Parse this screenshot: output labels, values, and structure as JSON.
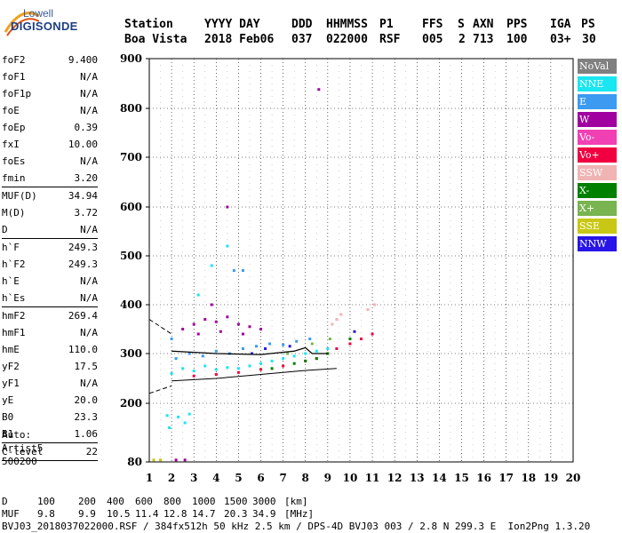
{
  "logo": {
    "line1": "Lowell",
    "line2": "DIGISONDE"
  },
  "header": {
    "labels": [
      "Station",
      "YYYY DAY",
      "DDD",
      "HHMMSS",
      "P1",
      "FFS",
      "S",
      "AXN",
      "PPS",
      "IGA",
      "PS"
    ],
    "values": [
      "Boa Vista",
      "2018 Feb06",
      "037",
      "022000",
      "RSF",
      "005",
      "2",
      "713",
      "100",
      "03+",
      "30"
    ]
  },
  "params": [
    {
      "group": [
        {
          "k": "foF2",
          "v": "9.400"
        },
        {
          "k": "foF1",
          "v": "N/A"
        },
        {
          "k": "foF1p",
          "v": "N/A"
        },
        {
          "k": "foE",
          "v": "N/A"
        },
        {
          "k": "foEp",
          "v": "0.39"
        },
        {
          "k": "fxI",
          "v": "10.00"
        },
        {
          "k": "foEs",
          "v": "N/A"
        },
        {
          "k": "fmin",
          "v": "3.20"
        }
      ]
    },
    {
      "group": [
        {
          "k": "MUF(D)",
          "v": "34.94"
        },
        {
          "k": "M(D)",
          "v": "3.72"
        },
        {
          "k": "D",
          "v": "N/A"
        }
      ]
    },
    {
      "group": [
        {
          "k": "h`F",
          "v": "249.3"
        },
        {
          "k": "h`F2",
          "v": "249.3"
        },
        {
          "k": "h`E",
          "v": "N/A"
        },
        {
          "k": "h`Es",
          "v": "N/A"
        }
      ]
    },
    {
      "group": [
        {
          "k": "hmF2",
          "v": "269.4"
        },
        {
          "k": "hmF1",
          "v": "N/A"
        },
        {
          "k": "hmE",
          "v": "110.0"
        },
        {
          "k": "yF2",
          "v": "17.5"
        },
        {
          "k": "yF1",
          "v": "N/A"
        },
        {
          "k": "yE",
          "v": "20.0"
        },
        {
          "k": "B0",
          "v": "23.3"
        },
        {
          "k": "B1",
          "v": "1.06"
        }
      ]
    },
    {
      "group": [
        {
          "k": "C-level",
          "v": "22"
        }
      ]
    }
  ],
  "autoscale": [
    "Auto:",
    "Artist5",
    "500200"
  ],
  "legend": [
    {
      "label": "NoVal",
      "color": "#808080"
    },
    {
      "label": "NNE",
      "color": "#19e6f0"
    },
    {
      "label": "E",
      "color": "#3c9bf0"
    },
    {
      "label": "W",
      "color": "#a000a0"
    },
    {
      "label": "Vo-",
      "color": "#f040b4"
    },
    {
      "label": "Vo+",
      "color": "#f00040"
    },
    {
      "label": "SSW",
      "color": "#f0b4b4"
    },
    {
      "label": "X-",
      "color": "#008000"
    },
    {
      "label": "X+",
      "color": "#78b450"
    },
    {
      "label": "SSE",
      "color": "#c8c814"
    },
    {
      "label": "NNW",
      "color": "#2814e6"
    }
  ],
  "footer": {
    "d_label": "D",
    "d_values": [
      "100",
      "200",
      "400",
      "600",
      "800",
      "1000",
      "1500",
      "3000",
      "[km]"
    ],
    "muf_label": "MUF",
    "muf_values": [
      "9.8",
      "9.9",
      "10.5",
      "11.4",
      "12.8",
      "14.7",
      "20.3",
      "34.9",
      "[MHz]"
    ],
    "info": "BVJ03_2018037022000.RSF / 384fx512h 50 kHz 2.5 km / DPS-4D BVJ03 003 / 2.8 N 299.3 E  Ion2Png 1.3.20"
  },
  "chart_data": {
    "type": "scatter",
    "title": "",
    "xlabel": "",
    "ylabel": "",
    "xlim": [
      1,
      20
    ],
    "ylim": [
      80,
      900
    ],
    "x_ticks": [
      1,
      2,
      3,
      4,
      5,
      6,
      7,
      8,
      9,
      10,
      11,
      12,
      13,
      14,
      15,
      16,
      17,
      18,
      19,
      20
    ],
    "y_ticks": [
      80,
      200,
      300,
      400,
      500,
      600,
      700,
      800,
      900
    ],
    "grid": true,
    "legend_position": "right",
    "series": [
      {
        "name": "NNE",
        "color": "#19e6f0",
        "points": [
          [
            2.0,
            260
          ],
          [
            2.5,
            270
          ],
          [
            3.0,
            265
          ],
          [
            3.5,
            275
          ],
          [
            4.0,
            268
          ],
          [
            4.5,
            272
          ],
          [
            5.0,
            270
          ],
          [
            5.5,
            275
          ],
          [
            6.0,
            280
          ],
          [
            6.5,
            285
          ],
          [
            7.0,
            290
          ],
          [
            7.5,
            295
          ],
          [
            8.0,
            300
          ],
          [
            8.5,
            305
          ],
          [
            9.0,
            310
          ],
          [
            1.8,
            175
          ],
          [
            2.3,
            172
          ],
          [
            2.8,
            178
          ],
          [
            1.9,
            150
          ],
          [
            2.6,
            160
          ],
          [
            3.2,
            420
          ],
          [
            3.8,
            480
          ],
          [
            4.5,
            520
          ]
        ]
      },
      {
        "name": "E",
        "color": "#3c9bf0",
        "points": [
          [
            2.2,
            290
          ],
          [
            2.8,
            300
          ],
          [
            3.4,
            295
          ],
          [
            4.0,
            305
          ],
          [
            4.6,
            300
          ],
          [
            5.2,
            310
          ],
          [
            5.8,
            315
          ],
          [
            6.4,
            320
          ],
          [
            7.0,
            318
          ],
          [
            7.6,
            325
          ],
          [
            8.2,
            330
          ],
          [
            4.8,
            470
          ],
          [
            5.2,
            470
          ],
          [
            2.0,
            330
          ]
        ]
      },
      {
        "name": "W",
        "color": "#a000a0",
        "points": [
          [
            2.5,
            350
          ],
          [
            3.0,
            360
          ],
          [
            3.5,
            370
          ],
          [
            4.0,
            365
          ],
          [
            4.5,
            375
          ],
          [
            5.0,
            360
          ],
          [
            5.5,
            355
          ],
          [
            6.0,
            350
          ],
          [
            3.2,
            340
          ],
          [
            4.2,
            345
          ],
          [
            5.2,
            340
          ],
          [
            4.5,
            600
          ],
          [
            3.8,
            400
          ],
          [
            2.2,
            84
          ],
          [
            2.6,
            84
          ],
          [
            8.6,
            838
          ]
        ]
      },
      {
        "name": "Vo+",
        "color": "#f00040",
        "points": [
          [
            3.0,
            255
          ],
          [
            4.0,
            258
          ],
          [
            5.0,
            262
          ],
          [
            6.0,
            268
          ],
          [
            7.0,
            275
          ],
          [
            8.0,
            285
          ],
          [
            8.5,
            290
          ],
          [
            9.0,
            300
          ],
          [
            9.4,
            310
          ],
          [
            10.0,
            320
          ],
          [
            10.5,
            330
          ],
          [
            11.0,
            340
          ]
        ]
      },
      {
        "name": "SSW",
        "color": "#f0b4b4",
        "points": [
          [
            9.4,
            370
          ],
          [
            9.6,
            380
          ],
          [
            10.8,
            390
          ],
          [
            11.1,
            400
          ],
          [
            9.2,
            360
          ]
        ]
      },
      {
        "name": "X-",
        "color": "#008000",
        "points": [
          [
            6.5,
            270
          ],
          [
            7.5,
            280
          ],
          [
            8.0,
            285
          ],
          [
            8.5,
            290
          ],
          [
            9.0,
            300
          ],
          [
            10.0,
            330
          ]
        ]
      },
      {
        "name": "X+",
        "color": "#78b450",
        "points": [
          [
            7.2,
            300
          ],
          [
            8.3,
            320
          ],
          [
            9.1,
            330
          ]
        ]
      },
      {
        "name": "SSE",
        "color": "#c8c814",
        "points": [
          [
            1.2,
            84
          ],
          [
            1.5,
            84
          ]
        ]
      },
      {
        "name": "NNW",
        "color": "#2814e6",
        "points": [
          [
            5.6,
            300
          ],
          [
            6.2,
            310
          ],
          [
            7.3,
            315
          ],
          [
            10.2,
            345
          ]
        ]
      }
    ],
    "profile_line": [
      [
        2.0,
        245
      ],
      [
        4.0,
        250
      ],
      [
        6.0,
        258
      ],
      [
        8.0,
        266
      ],
      [
        9.4,
        270
      ]
    ],
    "trace_line": [
      [
        2.0,
        305
      ],
      [
        4.0,
        300
      ],
      [
        6.0,
        298
      ],
      [
        7.5,
        305
      ],
      [
        8.0,
        312
      ],
      [
        8.3,
        300
      ],
      [
        9.0,
        300
      ]
    ],
    "dashed_upper": [
      [
        1.0,
        370
      ],
      [
        2.0,
        340
      ]
    ],
    "dashed_lower": [
      [
        1.0,
        220
      ],
      [
        2.0,
        235
      ]
    ]
  }
}
